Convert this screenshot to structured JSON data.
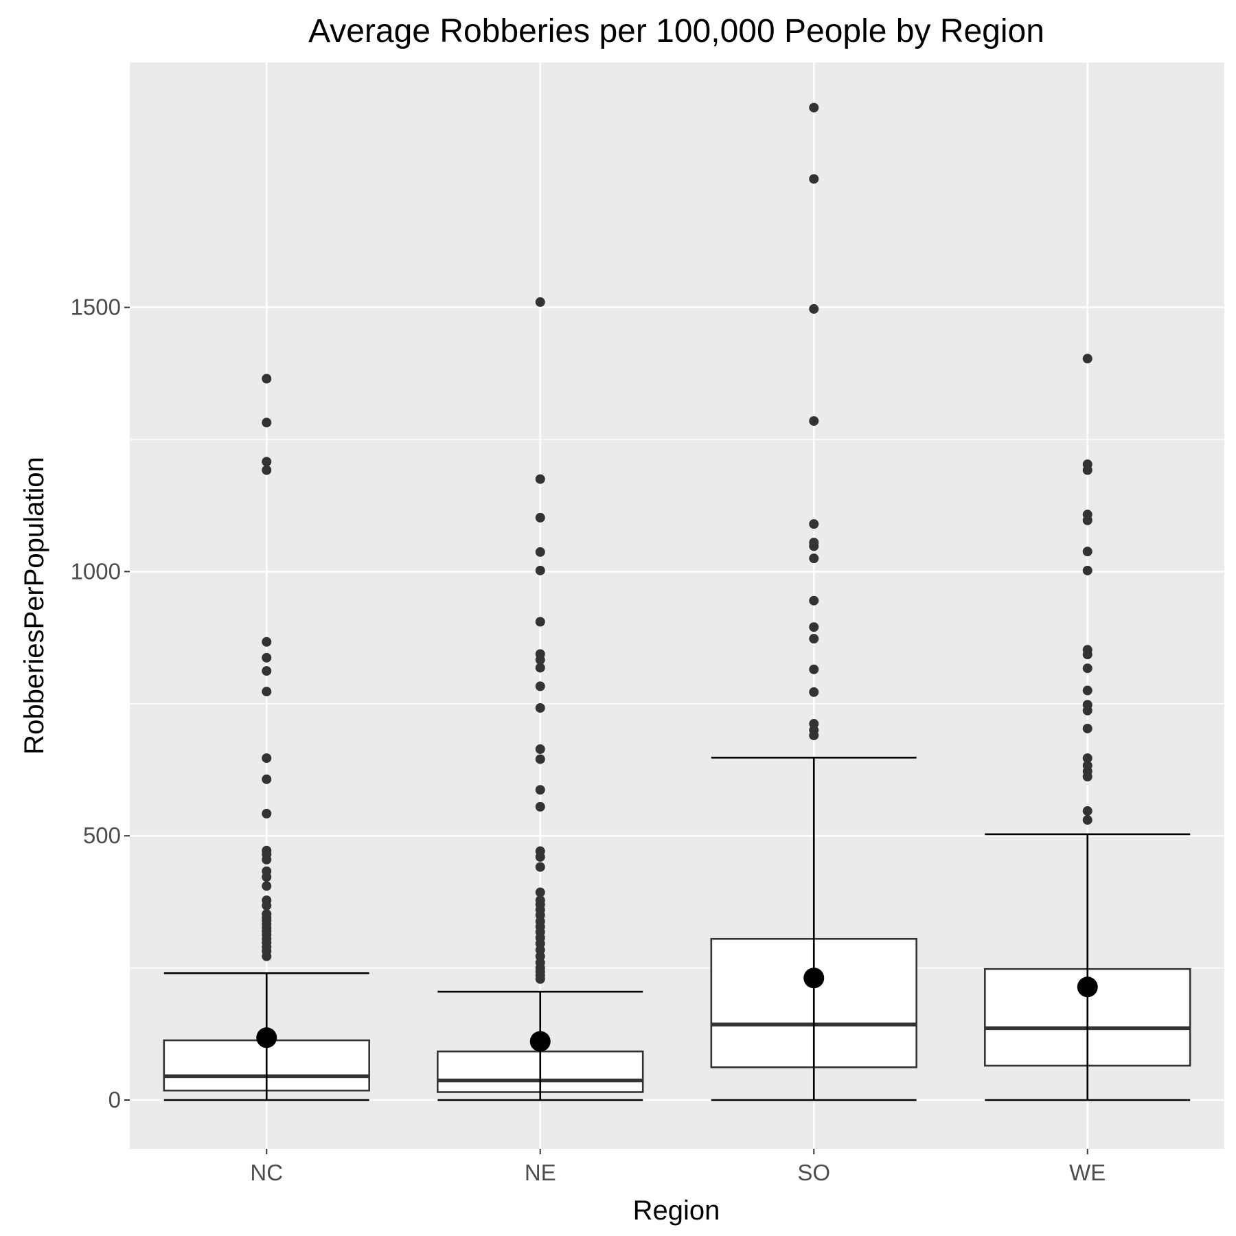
{
  "chart_data": {
    "type": "boxplot",
    "title": "Average Robberies per 100,000 People by Region",
    "xlabel": "Region",
    "ylabel": "RobberiesPerPopulation",
    "categories": [
      "NC",
      "NE",
      "SO",
      "WE"
    ],
    "ylim": [
      -90,
      1960
    ],
    "yticks": [
      0,
      500,
      1000,
      1500
    ],
    "grid": true,
    "colors": {
      "panel": "#ebebeb",
      "grid": "#ffffff",
      "box_fill": "#ffffff",
      "box_line": "#333333",
      "whisker": "#000000",
      "outlier": "#333333",
      "mean_point": "#000000",
      "tick_text": "#4d4d4d"
    },
    "boxes": [
      {
        "category": "NC",
        "whisker_low": 0,
        "q1": 18,
        "median": 45,
        "q3": 113,
        "whisker_high": 240,
        "mean": 118,
        "outliers": [
          1365,
          1282,
          1208,
          1192,
          867,
          837,
          812,
          773,
          647,
          607,
          542,
          472,
          465,
          455,
          433,
          422,
          405,
          378,
          368,
          352,
          345,
          340,
          333,
          326,
          320,
          313,
          305,
          298,
          290,
          282,
          272
        ]
      },
      {
        "category": "NE",
        "whisker_low": 0,
        "q1": 15,
        "median": 37,
        "q3": 92,
        "whisker_high": 205,
        "mean": 111,
        "outliers": [
          1510,
          1175,
          1102,
          1037,
          1002,
          905,
          844,
          833,
          818,
          783,
          742,
          664,
          645,
          587,
          555,
          471,
          460,
          441,
          393,
          378,
          370,
          360,
          350,
          338,
          328,
          318,
          307,
          296,
          284,
          272,
          260,
          250,
          243,
          236,
          229
        ]
      },
      {
        "category": "SO",
        "whisker_low": 0,
        "q1": 62,
        "median": 143,
        "q3": 305,
        "whisker_high": 648,
        "mean": 231,
        "outliers": [
          1878,
          1743,
          1497,
          1285,
          1090,
          1055,
          1048,
          1025,
          945,
          895,
          873,
          815,
          772,
          712,
          700,
          690
        ]
      },
      {
        "category": "WE",
        "whisker_low": 0,
        "q1": 65,
        "median": 136,
        "q3": 248,
        "whisker_high": 503,
        "mean": 214,
        "outliers": [
          1403,
          1203,
          1192,
          1108,
          1097,
          1038,
          1002,
          852,
          843,
          817,
          775,
          748,
          737,
          703,
          647,
          633,
          622,
          612,
          547,
          530
        ]
      }
    ]
  }
}
